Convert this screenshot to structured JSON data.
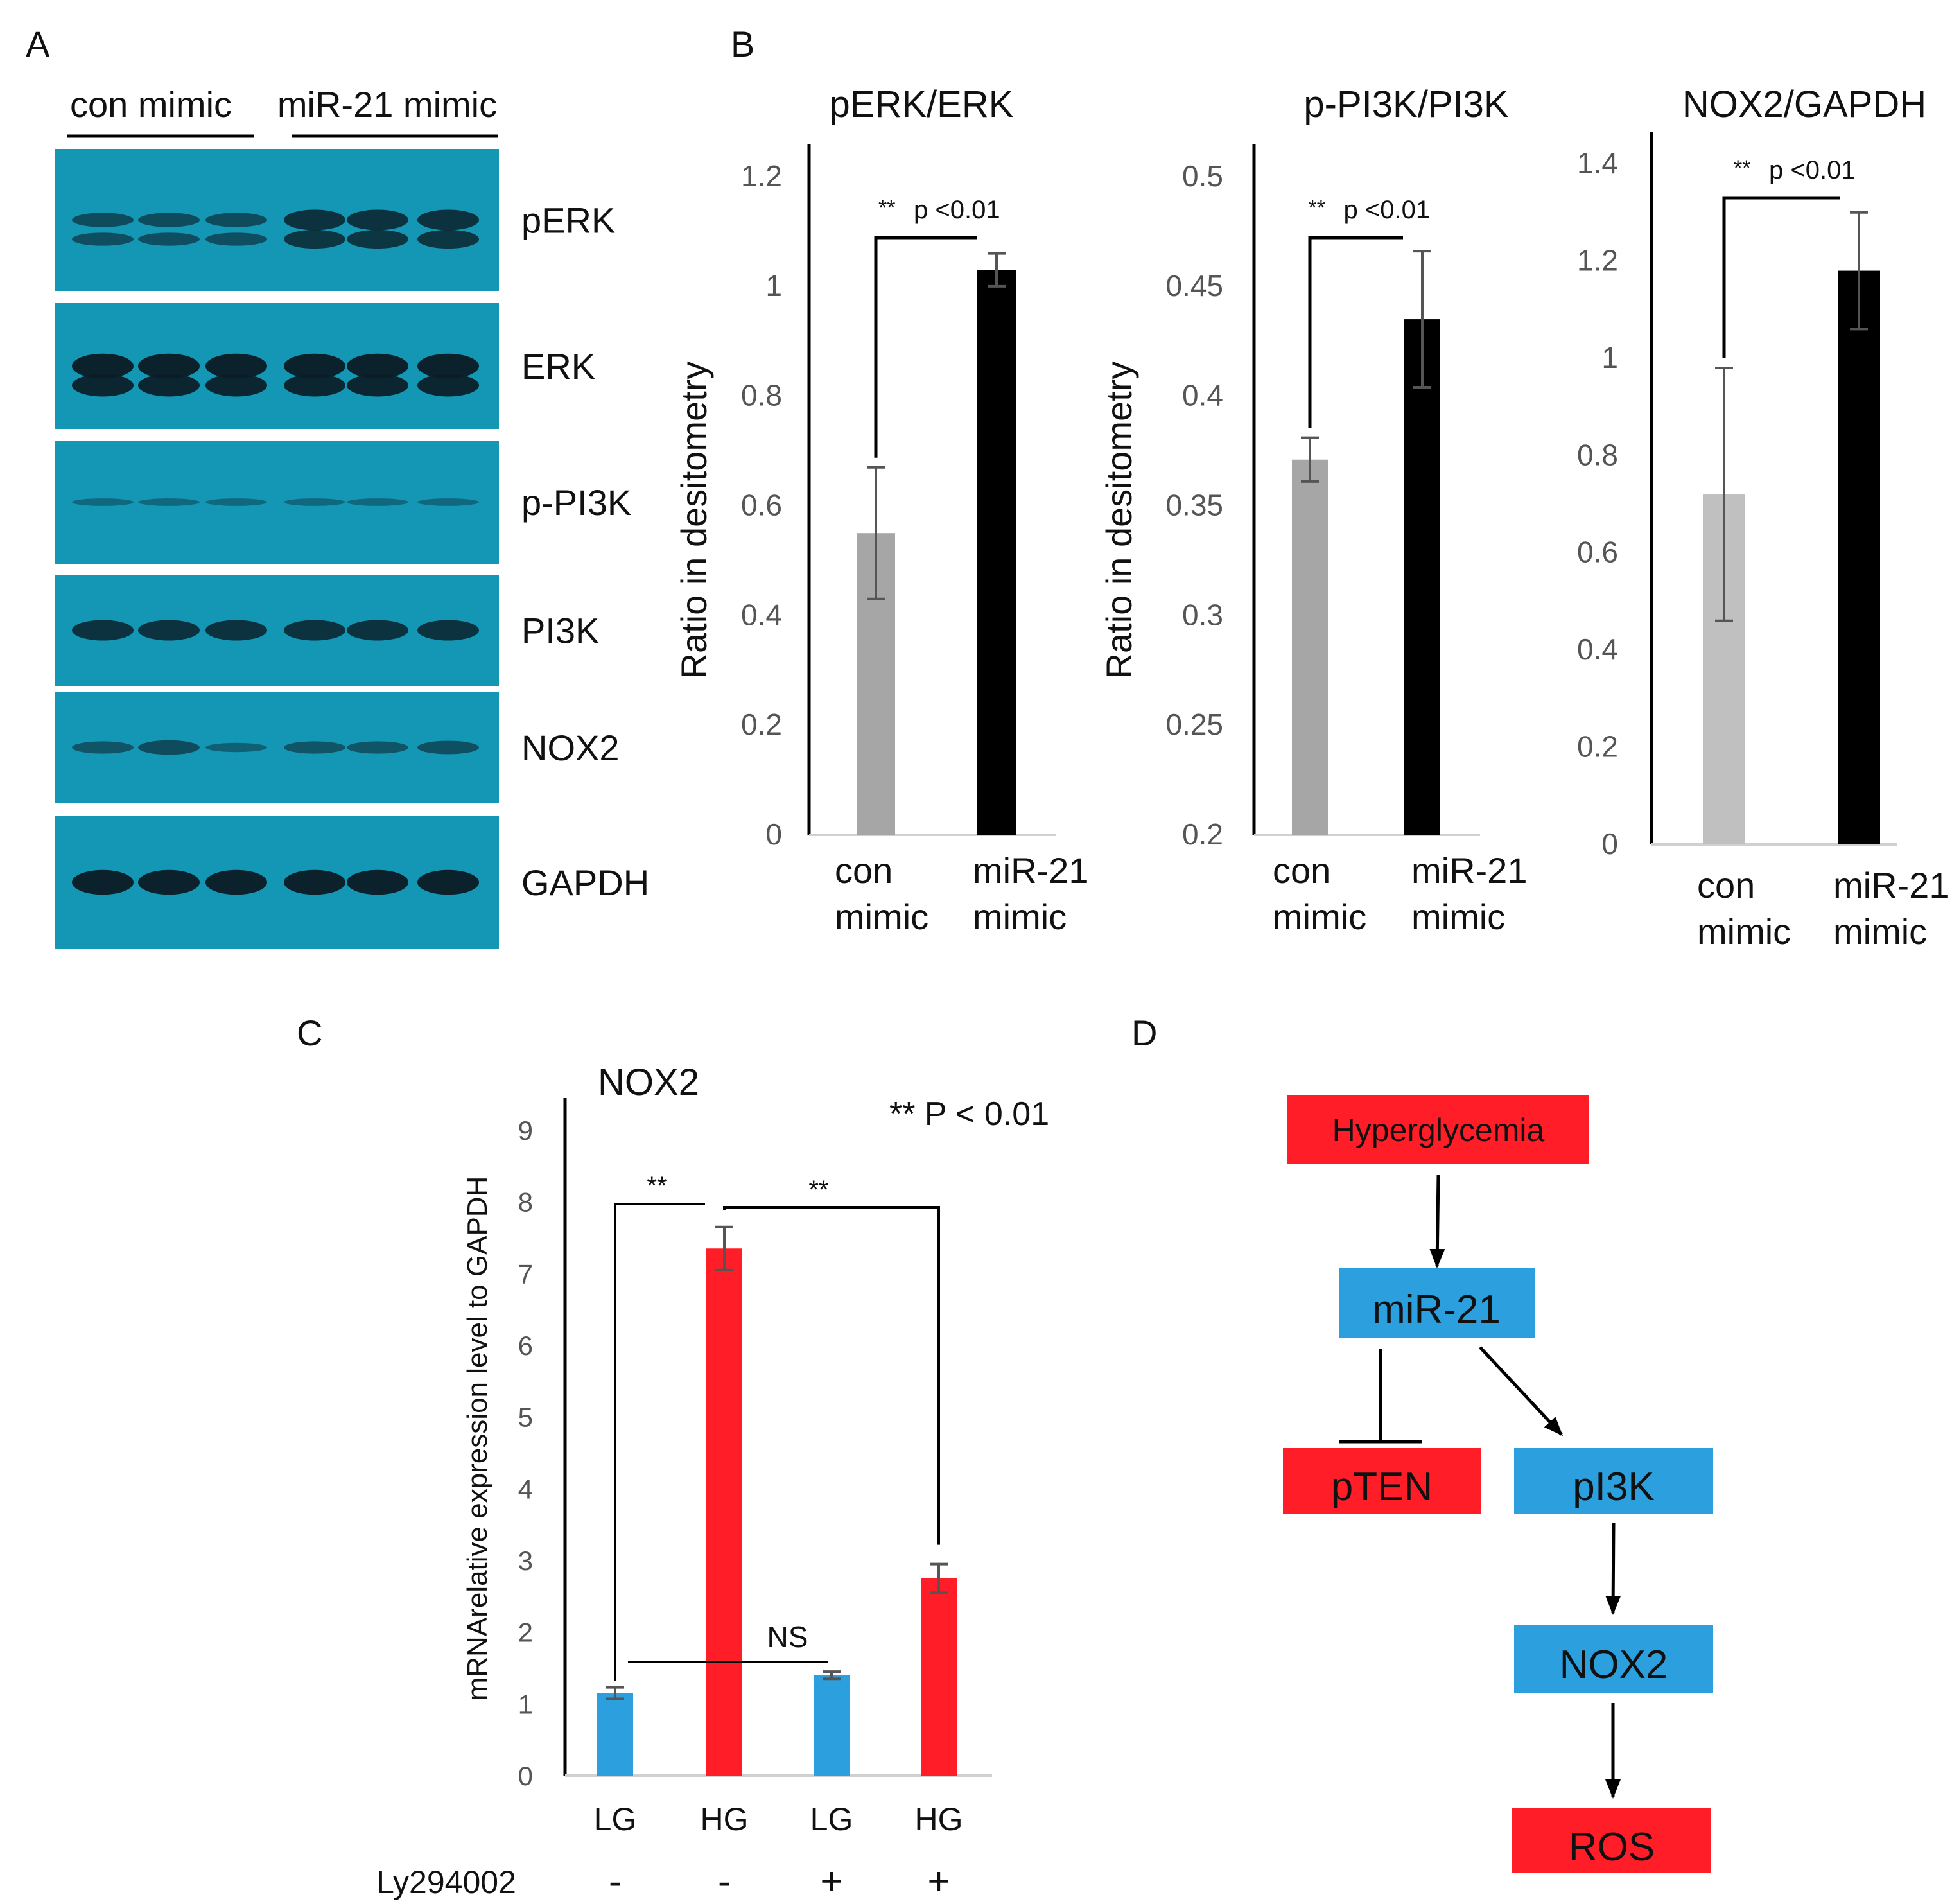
{
  "panel_labels": {
    "a": "A",
    "b": "B",
    "c": "C",
    "d": "D"
  },
  "blot": {
    "group_labels": [
      "con mimic",
      "miR-21 mimic"
    ],
    "bands": [
      {
        "label": "pERK",
        "strength": 0.55
      },
      {
        "label": "ERK",
        "strength": 0.95
      },
      {
        "label": "p-PI3K",
        "strength": 0.12
      },
      {
        "label": "PI3K",
        "strength": 0.75
      },
      {
        "label": "NOX2",
        "strength": 0.3
      },
      {
        "label": "GAPDH",
        "strength": 0.95
      }
    ],
    "colors": {
      "background": "#1497b5",
      "band": "#0b1c25"
    }
  },
  "chart_data": [
    {
      "type": "bar",
      "title": "pERK/ERK",
      "ylabel": "Ratio in desitometry",
      "categories": [
        "con\nmimic",
        "miR-21\nmimic"
      ],
      "values": [
        0.55,
        1.03
      ],
      "errors": [
        0.12,
        0.03
      ],
      "ylim": [
        0,
        1.2
      ],
      "yticks": [
        "0",
        "0.2",
        "0.4",
        "0.6",
        "0.8",
        "1",
        "1.2"
      ],
      "colors": [
        "#a6a6a6",
        "#000000"
      ],
      "annotation": {
        "stars": "**",
        "text": "p <0.01"
      }
    },
    {
      "type": "bar",
      "title": "p-PI3K/PI3K",
      "ylabel": "Ratio in desitometry",
      "categories": [
        "con\nmimic",
        "miR-21\nmimic"
      ],
      "values": [
        0.371,
        0.435
      ],
      "errors": [
        0.01,
        0.031
      ],
      "ylim": [
        0.2,
        0.5
      ],
      "yticks": [
        "0.2",
        "0.25",
        "0.3",
        "0.35",
        "0.4",
        "0.45",
        "0.5"
      ],
      "colors": [
        "#a6a6a6",
        "#000000"
      ],
      "annotation": {
        "stars": "**",
        "text": "p <0.01"
      }
    },
    {
      "type": "bar",
      "title": "NOX2/GAPDH",
      "ylabel": "",
      "categories": [
        "con\nmimic",
        "miR-21\nmimic"
      ],
      "values": [
        0.72,
        1.18
      ],
      "errors": [
        0.26,
        0.12
      ],
      "ylim": [
        0,
        1.4
      ],
      "yticks": [
        "0",
        "0.2",
        "0.4",
        "0.6",
        "0.8",
        "1",
        "1.2",
        "1.4"
      ],
      "colors": [
        "#c0c0c0",
        "#000000"
      ],
      "annotation": {
        "stars": "**",
        "text": "p <0.01"
      }
    },
    {
      "type": "bar",
      "title": "NOX2",
      "ylabel": "mRNArelative expression level to GAPDH",
      "categories": [
        "LG",
        "HG",
        "LG",
        "HG"
      ],
      "treatment_label": "Ly294002",
      "treatment": [
        "-",
        "-",
        "+",
        "+"
      ],
      "values": [
        1.15,
        7.35,
        1.4,
        2.75
      ],
      "errors": [
        0.08,
        0.3,
        0.05,
        0.2
      ],
      "ylim": [
        0,
        9
      ],
      "yticks": [
        "0",
        "1",
        "2",
        "3",
        "4",
        "5",
        "6",
        "7",
        "8",
        "9"
      ],
      "colors": [
        "#2c9fde",
        "#ff1e27",
        "#2c9fde",
        "#ff1e27"
      ],
      "legend_note": "** P < 0.01",
      "comparisons": [
        {
          "label": "**",
          "bars": [
            0,
            1
          ]
        },
        {
          "label": "**",
          "bars": [
            1,
            3
          ]
        },
        {
          "label": "NS",
          "bars": [
            0,
            2
          ]
        }
      ]
    }
  ],
  "pathway": {
    "nodes": [
      {
        "id": "hyperglycemia",
        "label": "Hyperglycemia",
        "color": "#ff1e27"
      },
      {
        "id": "mir21",
        "label": "miR-21",
        "color": "#2c9fde"
      },
      {
        "id": "pten",
        "label": "pTEN",
        "color": "#ff1e27"
      },
      {
        "id": "pi3k",
        "label": "pI3K",
        "color": "#2c9fde"
      },
      {
        "id": "nox2",
        "label": "NOX2",
        "color": "#2c9fde"
      },
      {
        "id": "ros",
        "label": "ROS",
        "color": "#ff1e27"
      }
    ],
    "edges": [
      {
        "from": "hyperglycemia",
        "to": "mir21",
        "type": "activates"
      },
      {
        "from": "mir21",
        "to": "pten",
        "type": "inhibits"
      },
      {
        "from": "mir21",
        "to": "pi3k",
        "type": "activates"
      },
      {
        "from": "pi3k",
        "to": "nox2",
        "type": "activates"
      },
      {
        "from": "nox2",
        "to": "ros",
        "type": "activates"
      }
    ]
  }
}
